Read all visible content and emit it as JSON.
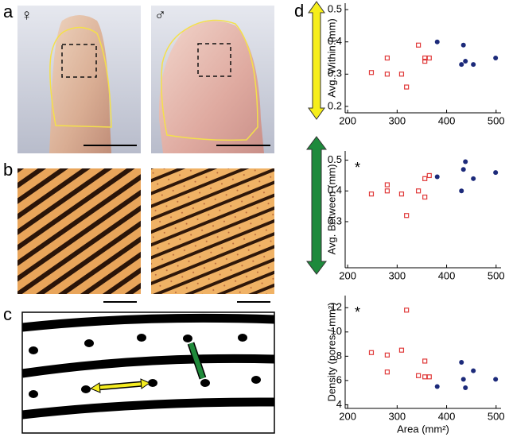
{
  "panels": [
    "a",
    "b",
    "c",
    "d"
  ],
  "symbols": [
    "♀",
    "♂"
  ],
  "chart_data": [
    {
      "type": "scatter",
      "ylabel": "Avg. Within (mm)",
      "xlim": [
        195,
        510
      ],
      "xticks": [
        200,
        300,
        400,
        500
      ],
      "ylim": [
        0.18,
        0.52
      ],
      "yticks": [
        0.2,
        0.3,
        0.4,
        0.5
      ],
      "series": [
        {
          "color": "#e03a3a",
          "marker": "square",
          "x": [
            248,
            280,
            280,
            309,
            319,
            343,
            356,
            356,
            365
          ],
          "values": [
            0.305,
            0.35,
            0.3,
            0.3,
            0.26,
            0.39,
            0.35,
            0.34,
            0.35
          ]
        },
        {
          "color": "#1c2a7a",
          "marker": "circle",
          "x": [
            381,
            430,
            434,
            438,
            454,
            499
          ],
          "values": [
            0.4,
            0.33,
            0.39,
            0.34,
            0.33,
            0.35
          ]
        }
      ]
    },
    {
      "type": "scatter",
      "ylabel": "Avg. Between (mm)",
      "annotation": "*",
      "xlim": [
        195,
        510
      ],
      "xticks": [
        200,
        300,
        400,
        500
      ],
      "ylim": [
        0.15,
        0.53
      ],
      "yticks": [
        0.3,
        0.4,
        0.5
      ],
      "series": [
        {
          "color": "#e03a3a",
          "marker": "square",
          "x": [
            248,
            280,
            280,
            309,
            319,
            343,
            356,
            356,
            365
          ],
          "values": [
            0.39,
            0.42,
            0.4,
            0.39,
            0.32,
            0.4,
            0.44,
            0.38,
            0.45
          ]
        },
        {
          "color": "#1c2a7a",
          "marker": "circle",
          "x": [
            381,
            430,
            434,
            438,
            454,
            499
          ],
          "values": [
            0.446,
            0.4,
            0.47,
            0.495,
            0.44,
            0.46
          ]
        }
      ]
    },
    {
      "type": "scatter",
      "ylabel": "Density (pores / mm²)",
      "xlabel": "Area (mm²)",
      "annotation": "*",
      "xlim": [
        195,
        510
      ],
      "xticks": [
        200,
        300,
        400,
        500
      ],
      "ylim": [
        3.7,
        13
      ],
      "yticks": [
        4,
        6,
        8,
        10,
        12
      ],
      "series": [
        {
          "color": "#e03a3a",
          "marker": "square",
          "x": [
            248,
            280,
            280,
            309,
            319,
            343,
            356,
            356,
            365
          ],
          "values": [
            8.3,
            8.1,
            6.7,
            8.5,
            11.8,
            6.4,
            7.6,
            6.3,
            6.3
          ]
        },
        {
          "color": "#1c2a7a",
          "marker": "circle",
          "x": [
            381,
            430,
            434,
            438,
            454,
            499
          ],
          "values": [
            5.5,
            7.5,
            6.1,
            5.4,
            6.8,
            6.1
          ]
        }
      ]
    }
  ]
}
